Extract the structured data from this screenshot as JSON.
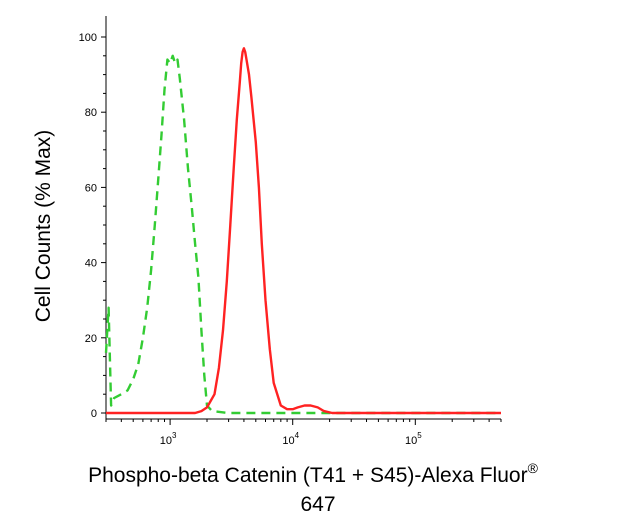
{
  "chart_data": {
    "type": "line",
    "title": "",
    "xlabel_line1": "Phospho-beta Catenin (T41 + S45)-Alexa Fluor",
    "xlabel_superscript": "®",
    "xlabel_line2": "647",
    "ylabel": "Cell Counts (% Max)",
    "x_scale": "log",
    "xlim": [
      300,
      500000
    ],
    "ylim": [
      0,
      100
    ],
    "y_ticks": [
      0,
      20,
      40,
      60,
      80,
      100
    ],
    "y_tick_labels": [
      "0",
      "20",
      "40",
      "60",
      "80",
      "100"
    ],
    "x_ticks": [
      {
        "value": 1000,
        "base": "10",
        "exp": "3"
      },
      {
        "value": 10000,
        "base": "10",
        "exp": "4"
      },
      {
        "value": 100000,
        "base": "10",
        "exp": "5"
      }
    ],
    "grid": false,
    "legend": "none",
    "series": [
      {
        "color": "#33cc33",
        "style": "dashed",
        "points": [
          [
            300,
            16
          ],
          [
            315,
            28
          ],
          [
            330,
            2
          ],
          [
            350,
            4
          ],
          [
            400,
            5
          ],
          [
            450,
            6
          ],
          [
            500,
            9
          ],
          [
            550,
            13
          ],
          [
            600,
            20
          ],
          [
            650,
            28
          ],
          [
            700,
            38
          ],
          [
            750,
            50
          ],
          [
            800,
            62
          ],
          [
            850,
            74
          ],
          [
            900,
            86
          ],
          [
            950,
            94
          ],
          [
            1000,
            93
          ],
          [
            1050,
            95
          ],
          [
            1100,
            93
          ],
          [
            1150,
            94
          ],
          [
            1200,
            89
          ],
          [
            1300,
            78
          ],
          [
            1400,
            65
          ],
          [
            1500,
            55
          ],
          [
            1600,
            45
          ],
          [
            1700,
            36
          ],
          [
            1800,
            22
          ],
          [
            1900,
            10
          ],
          [
            2000,
            2
          ],
          [
            2200,
            0.5
          ],
          [
            3000,
            0
          ],
          [
            5000,
            0
          ],
          [
            10000,
            0
          ],
          [
            20000,
            0
          ],
          [
            100000,
            0
          ],
          [
            500000,
            0
          ]
        ]
      },
      {
        "color": "#ff2222",
        "style": "solid",
        "points": [
          [
            300,
            0
          ],
          [
            1000,
            0
          ],
          [
            1600,
            0
          ],
          [
            1800,
            0.5
          ],
          [
            2000,
            1.5
          ],
          [
            2300,
            5
          ],
          [
            2500,
            12
          ],
          [
            2700,
            22
          ],
          [
            2900,
            35
          ],
          [
            3100,
            50
          ],
          [
            3300,
            65
          ],
          [
            3500,
            78
          ],
          [
            3700,
            88
          ],
          [
            3800,
            93
          ],
          [
            3900,
            96
          ],
          [
            4000,
            97
          ],
          [
            4100,
            96
          ],
          [
            4200,
            94
          ],
          [
            4400,
            90
          ],
          [
            4600,
            84
          ],
          [
            4800,
            78
          ],
          [
            5000,
            72
          ],
          [
            5300,
            60
          ],
          [
            5600,
            45
          ],
          [
            6000,
            30
          ],
          [
            6500,
            17
          ],
          [
            7000,
            8
          ],
          [
            8000,
            2
          ],
          [
            9000,
            1
          ],
          [
            10000,
            1
          ],
          [
            11000,
            1.5
          ],
          [
            12500,
            2
          ],
          [
            14000,
            2
          ],
          [
            16000,
            1.5
          ],
          [
            18000,
            0.5
          ],
          [
            21000,
            0
          ],
          [
            30000,
            0
          ],
          [
            100000,
            0
          ],
          [
            500000,
            0
          ]
        ]
      }
    ]
  }
}
